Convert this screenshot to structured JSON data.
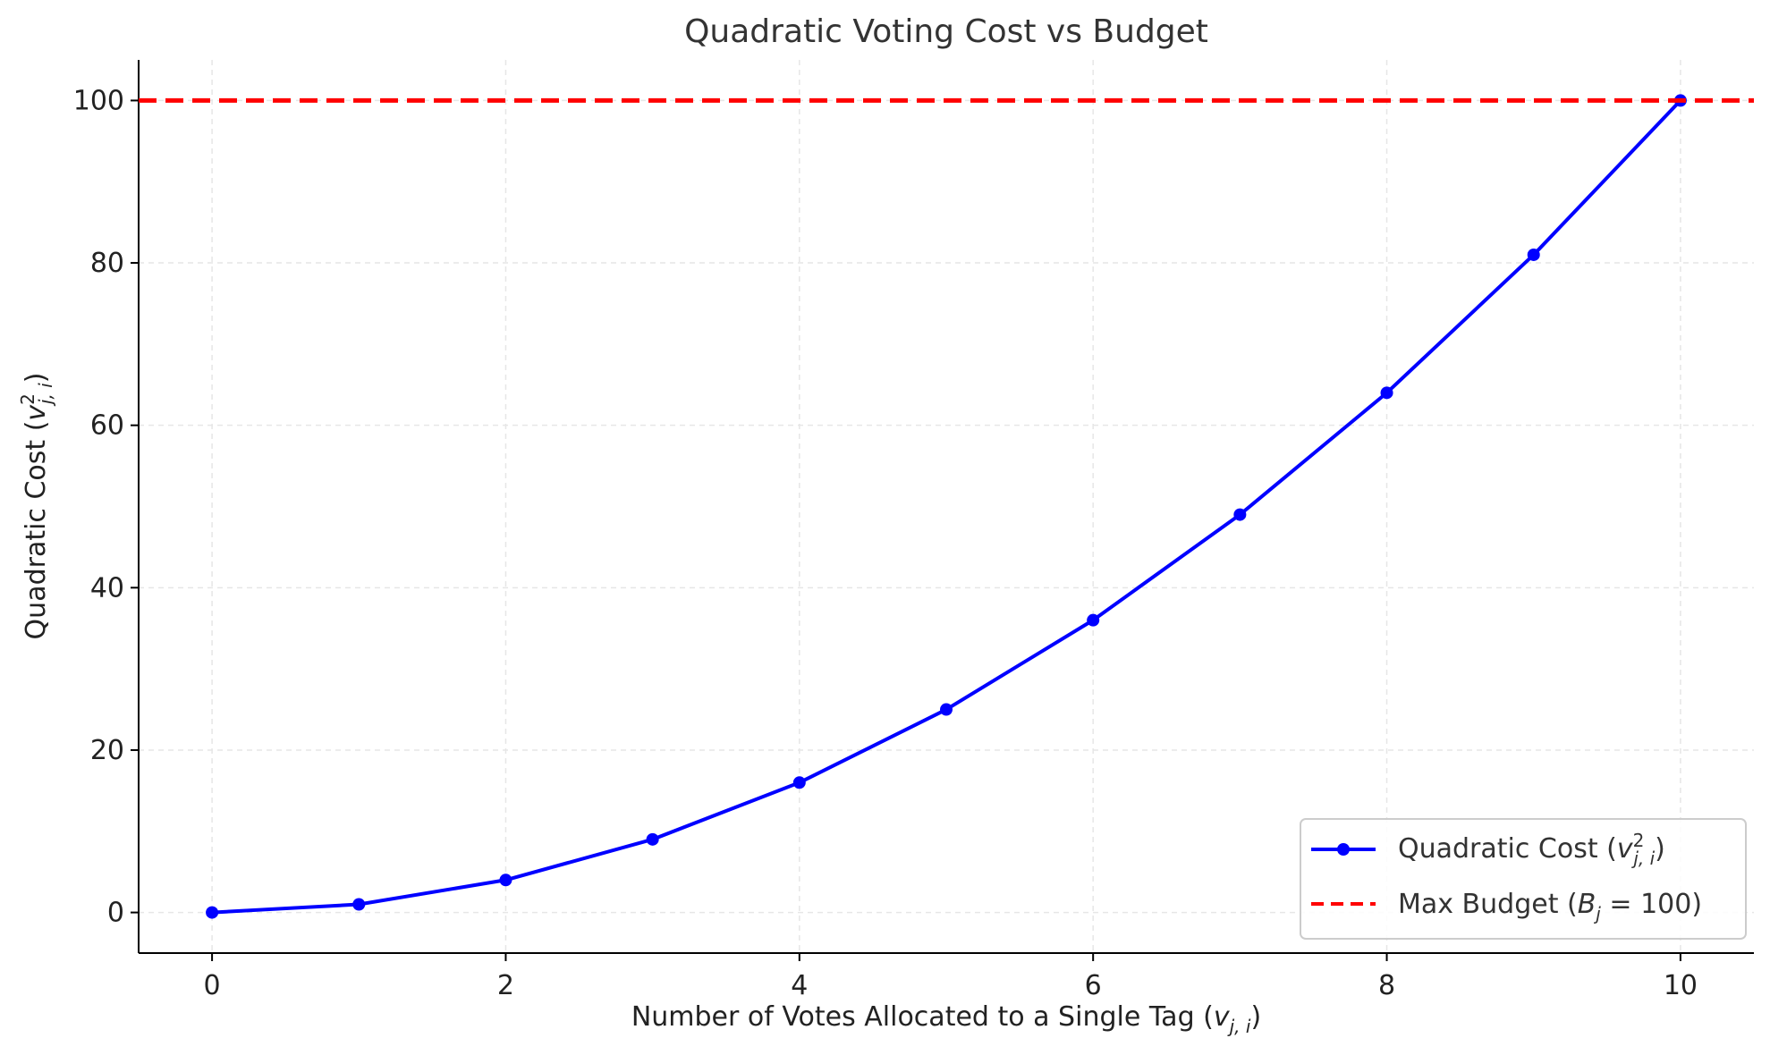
{
  "chart_data": {
    "type": "line",
    "title": "Quadratic Voting Cost vs Budget",
    "xlabel": {
      "text": "Number of Votes Allocated to a Single Tag (",
      "var": "v",
      "sub": "j, i",
      "close": ")"
    },
    "ylabel": {
      "text": "Quadratic Cost (",
      "var": "v",
      "sup": "2",
      "sub": "j, i",
      "close": ")"
    },
    "xlim": [
      -0.5,
      10.5
    ],
    "ylim": [
      -5,
      105
    ],
    "xticks": [
      "0",
      "2",
      "4",
      "6",
      "8",
      "10"
    ],
    "yticks": [
      "0",
      "20",
      "40",
      "60",
      "80",
      "100"
    ],
    "grid": true,
    "legend_position": "bottom-right",
    "series": [
      {
        "kind": "line-marker",
        "legend": {
          "text": "Quadratic Cost (",
          "var": "v",
          "sup": "2",
          "sub": "j, i",
          "close": ")"
        },
        "color": "#0000ff",
        "x": [
          0,
          1,
          2,
          3,
          4,
          5,
          6,
          7,
          8,
          9,
          10
        ],
        "y": [
          0,
          1,
          4,
          9,
          16,
          25,
          36,
          49,
          64,
          81,
          100
        ]
      },
      {
        "kind": "hline-dashed",
        "legend": {
          "text": "Max Budget (",
          "var": "B",
          "sub": "j",
          "eq": " = 100",
          "close": ")"
        },
        "color": "#ff0000",
        "y": 100
      }
    ]
  }
}
